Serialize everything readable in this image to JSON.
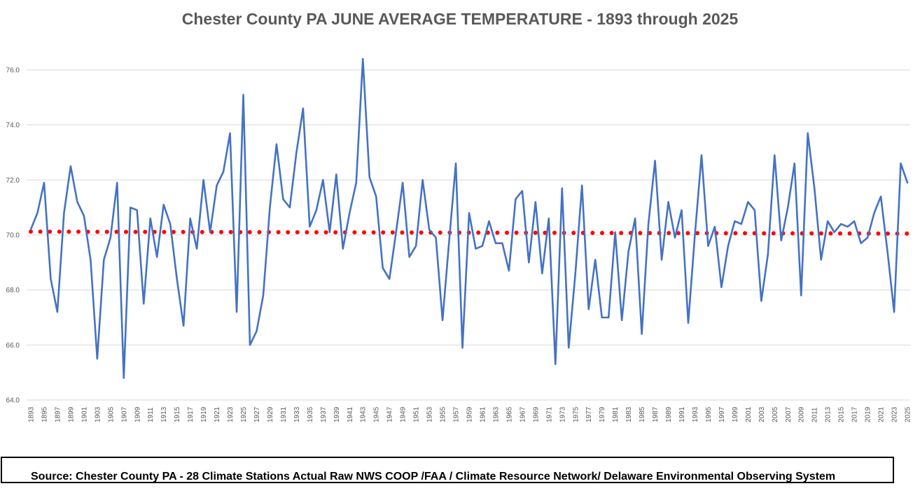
{
  "chart_data": {
    "type": "line",
    "title": "Chester County PA JUNE AVERAGE TEMPERATURE - 1893 through 2025",
    "xlabel": "",
    "ylabel": "",
    "ylim": [
      64,
      77
    ],
    "y_ticks": [
      "64.0",
      "66.0",
      "68.0",
      "70.0",
      "72.0",
      "74.0",
      "76.0"
    ],
    "grid": "horizontal",
    "x_start": 1893,
    "x_end": 2025,
    "x_tick_step": 2,
    "series": [
      {
        "color": "#4472c4",
        "style": "solid",
        "values": [
          70.2,
          70.8,
          71.9,
          68.4,
          67.2,
          70.8,
          72.5,
          71.2,
          70.7,
          69.1,
          65.5,
          69.1,
          69.9,
          71.9,
          64.8,
          71.0,
          70.9,
          67.5,
          70.6,
          69.2,
          71.1,
          70.4,
          68.4,
          66.7,
          70.6,
          69.5,
          72.0,
          70.1,
          71.8,
          72.3,
          73.7,
          67.2,
          75.1,
          66.0,
          66.5,
          67.8,
          71.0,
          73.3,
          71.3,
          71.0,
          73.0,
          74.6,
          70.3,
          70.9,
          72.0,
          70.1,
          72.2,
          69.5,
          70.8,
          71.9,
          76.4,
          72.1,
          71.4,
          68.8,
          68.4,
          70.1,
          71.9,
          69.2,
          69.6,
          72.0,
          70.2,
          69.9,
          66.9,
          69.8,
          72.6,
          65.9,
          70.8,
          69.5,
          69.6,
          70.5,
          69.7,
          69.7,
          68.7,
          71.3,
          71.6,
          69.0,
          71.2,
          68.6,
          70.6,
          65.3,
          71.7,
          65.9,
          68.6,
          71.8,
          67.3,
          69.1,
          67.0,
          67.0,
          70.1,
          66.9,
          69.4,
          70.6,
          66.4,
          70.4,
          72.7,
          69.1,
          71.2,
          69.9,
          70.9,
          66.8,
          70.0,
          72.9,
          69.6,
          70.3,
          68.1,
          69.6,
          70.5,
          70.4,
          71.2,
          70.9,
          67.6,
          69.3,
          72.9,
          69.8,
          71.0,
          72.6,
          67.8,
          73.7,
          71.7,
          69.1,
          70.5,
          70.1,
          70.4,
          70.3,
          70.5,
          69.7,
          69.9,
          70.8,
          71.4,
          69.4,
          67.2,
          72.6,
          71.9
        ]
      },
      {
        "color": "#ff0000",
        "style": "dotted",
        "trend": [
          70.12,
          70.05
        ]
      }
    ]
  },
  "source": "Source: Chester County PA - 28 Climate Stations Actual Raw NWS COOP /FAA / Climate Resource Network/ Delaware Environmental Observing System"
}
